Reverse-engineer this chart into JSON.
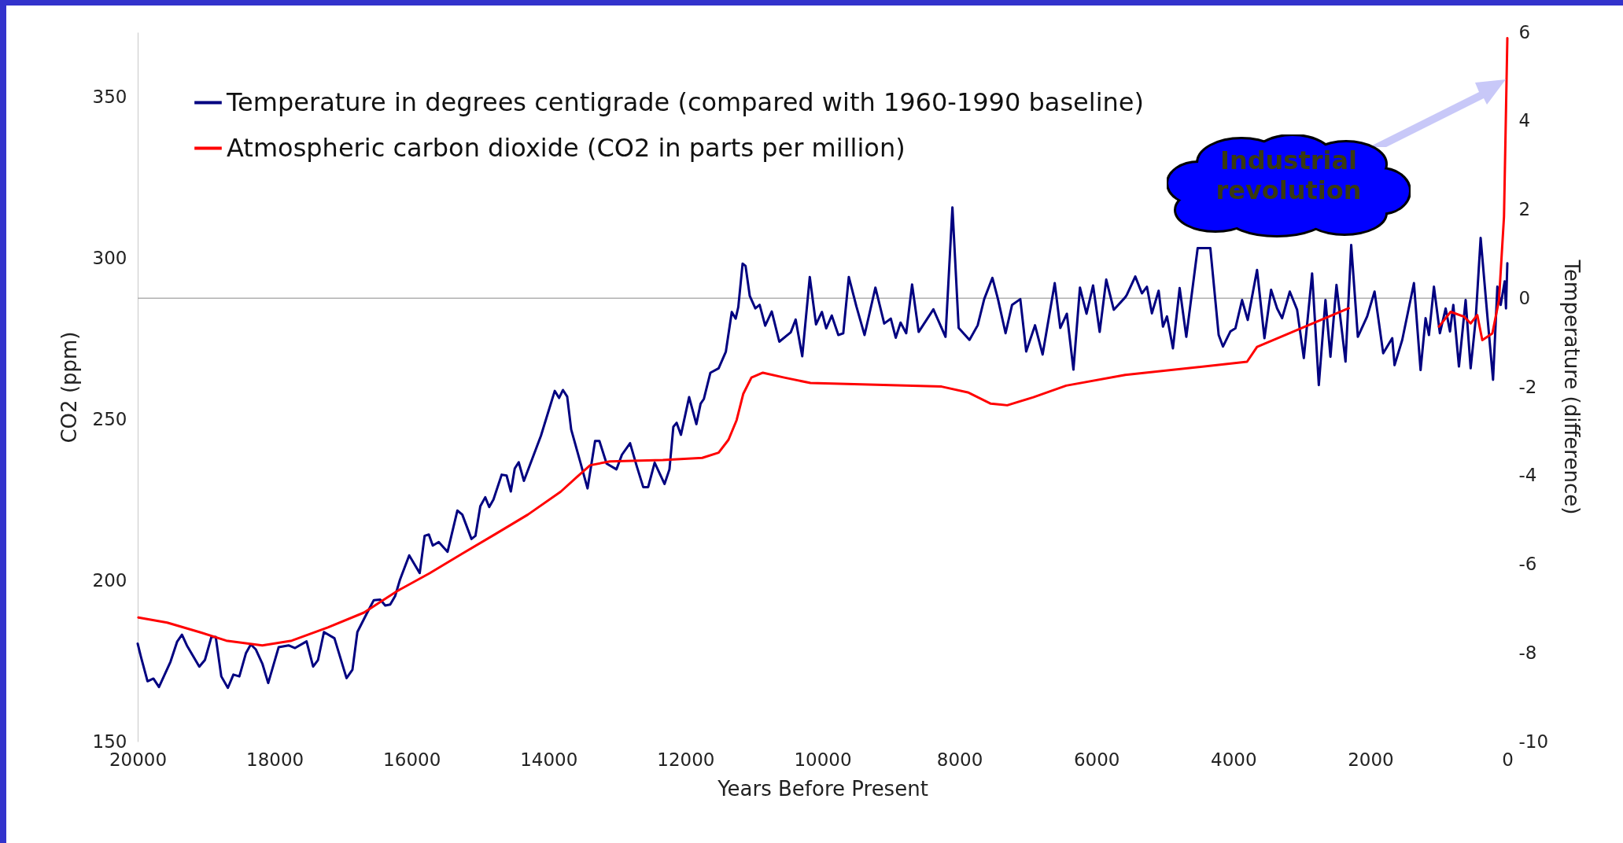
{
  "chart_data": {
    "type": "line",
    "xlabel": "Years Before Present",
    "ylabel": "CO2 (ppm)",
    "y2label": "Temperature (difference)",
    "xlim": [
      20000,
      0
    ],
    "xticks": [
      20000,
      18000,
      16000,
      14000,
      12000,
      10000,
      8000,
      6000,
      4000,
      2000,
      0
    ],
    "ylim": [
      150,
      370
    ],
    "yticks": [
      150,
      200,
      250,
      300,
      350
    ],
    "y2lim": [
      -10,
      6
    ],
    "y2ticks": [
      -10,
      -8,
      -6,
      -4,
      -2,
      0,
      2,
      4,
      6
    ],
    "grid": false,
    "legend": "top left",
    "ref_lines": [
      {
        "axis": "y2",
        "value": 0,
        "color": "#b0b0b0"
      }
    ],
    "annotations": [
      "Industrial revolution"
    ],
    "series": [
      {
        "name": "Temperature in degrees centigrade (compared with 1960-1990 baseline)",
        "color": "#000080",
        "axis": "y2",
        "x": [
          20000,
          19952,
          19856,
          19770,
          19689,
          19521,
          19425,
          19353,
          19282,
          19100,
          19018,
          18923,
          18860,
          18779,
          18683,
          18602,
          18515,
          18420,
          18348,
          18276,
          18180,
          18094,
          17941,
          17797,
          17702,
          17534,
          17438,
          17367,
          17280,
          17127,
          16950,
          16864,
          16792,
          16648,
          16552,
          16457,
          16385,
          16313,
          16241,
          16170,
          16035,
          15882,
          15810,
          15748,
          15691,
          15604,
          15475,
          15332,
          15260,
          15126,
          15068,
          14997,
          14925,
          14867,
          14805,
          14685,
          14613,
          14551,
          14494,
          14436,
          14360,
          14111,
          13910,
          13847,
          13790,
          13728,
          13670,
          13536,
          13431,
          13321,
          13258,
          13153,
          13009,
          12929,
          12810,
          12714,
          12618,
          12546,
          12451,
          12307,
          12235,
          12178,
          12130,
          12067,
          11948,
          11842,
          11780,
          11732,
          11637,
          11517,
          11412,
          11325,
          11268,
          11230,
          11167,
          11124,
          11062,
          10981,
          10918,
          10837,
          10741,
          10631,
          10464,
          10392,
          10296,
          10186,
          10095,
          10009,
          9946,
          9865,
          9769,
          9697,
          9616,
          9506,
          9386,
          9228,
          9099,
          9003,
          8931,
          8860,
          8778,
          8692,
          8596,
          8381,
          8204,
          8103,
          8012,
          7854,
          7734,
          7639,
          7519,
          7438,
          7327,
          7232,
          7112,
          7026,
          6897,
          6786,
          6609,
          6528,
          6432,
          6336,
          6241,
          6145,
          6049,
          5953,
          5857,
          5747,
          5580,
          5555,
          5433,
          5336,
          5263,
          5190,
          5092,
          5029,
          4970,
          4883,
          4785,
          4688,
          4522,
          4337,
          4215,
          4152,
          4045,
          3971,
          3874,
          3791,
          3655,
          3547,
          3450,
          3362,
          3289,
          3177,
          3070,
          2972,
          2851,
          2753,
          2656,
          2583,
          2495,
          2363,
          2280,
          2183,
          2047,
          1939,
          1813,
          1681,
          1647,
          1535,
          1364,
          1267,
          1194,
          1145,
          1072,
          985,
          901,
          838,
          789,
          707,
          609,
          536,
          463,
          390,
          293,
          209,
          146,
          97,
          39,
          20,
          0
        ],
        "values": [
          -7.79,
          -8.09,
          -8.64,
          -8.58,
          -8.77,
          -8.2,
          -7.75,
          -7.59,
          -7.83,
          -8.31,
          -8.16,
          -7.64,
          -7.64,
          -8.53,
          -8.79,
          -8.49,
          -8.53,
          -8.01,
          -7.81,
          -7.92,
          -8.24,
          -8.68,
          -7.87,
          -7.83,
          -7.89,
          -7.74,
          -8.31,
          -8.16,
          -7.53,
          -7.67,
          -8.57,
          -8.38,
          -7.53,
          -7.09,
          -6.81,
          -6.8,
          -6.93,
          -6.91,
          -6.72,
          -6.35,
          -5.8,
          -6.2,
          -5.36,
          -5.33,
          -5.58,
          -5.5,
          -5.72,
          -4.79,
          -4.88,
          -5.43,
          -5.36,
          -4.69,
          -4.49,
          -4.71,
          -4.54,
          -3.98,
          -4,
          -4.36,
          -3.84,
          -3.7,
          -4.12,
          -3.1,
          -2.09,
          -2.25,
          -2.07,
          -2.22,
          -2.96,
          -3.7,
          -4.29,
          -3.22,
          -3.22,
          -3.73,
          -3.86,
          -3.53,
          -3.27,
          -3.78,
          -4.26,
          -4.26,
          -3.71,
          -4.19,
          -3.86,
          -2.9,
          -2.81,
          -3.08,
          -2.23,
          -2.84,
          -2.38,
          -2.27,
          -1.68,
          -1.58,
          -1.21,
          -0.31,
          -0.46,
          -0.2,
          0.78,
          0.73,
          0.05,
          -0.23,
          -0.15,
          -0.62,
          -0.3,
          -0.98,
          -0.77,
          -0.48,
          -1.31,
          0.48,
          -0.59,
          -0.31,
          -0.68,
          -0.39,
          -0.83,
          -0.79,
          0.48,
          -0.18,
          -0.83,
          0.24,
          -0.57,
          -0.46,
          -0.89,
          -0.55,
          -0.79,
          0.31,
          -0.76,
          -0.25,
          -0.87,
          2.05,
          -0.67,
          -0.94,
          -0.61,
          -0.02,
          0.46,
          -0.02,
          -0.79,
          -0.15,
          -0.02,
          -1.2,
          -0.61,
          -1.27,
          0.34,
          -0.67,
          -0.35,
          -1.61,
          0.24,
          -0.35,
          0.29,
          -0.76,
          0.42,
          -0.26,
          0.02,
          0.08,
          0.49,
          0.11,
          0.26,
          -0.34,
          0.17,
          -0.64,
          -0.41,
          -1.13,
          0.23,
          -0.87,
          1.13,
          1.13,
          -0.83,
          -1.09,
          -0.75,
          -0.68,
          -0.04,
          -0.49,
          0.64,
          -0.9,
          0.19,
          -0.23,
          -0.45,
          0.15,
          -0.26,
          -1.35,
          0.56,
          -1.96,
          -0.04,
          -1.32,
          0.3,
          -1.43,
          1.2,
          -0.87,
          -0.41,
          0.15,
          -1.24,
          -0.9,
          -1.51,
          -0.94,
          0.34,
          -1.62,
          -0.45,
          -0.83,
          0.26,
          -0.79,
          -0.23,
          -0.75,
          -0.15,
          -1.54,
          -0.04,
          -1.58,
          -0.49,
          1.36,
          -0.38,
          -1.84,
          0.26,
          -0.15,
          0.38,
          -0.23,
          0.79
        ]
      },
      {
        "name": "Atmospheric carbon dioxide (CO2 in parts per million)",
        "color": "#ff0000",
        "x": [
          19990,
          19569,
          19090,
          18707,
          18180,
          17750,
          17223,
          16696,
          16217,
          15738,
          15260,
          14781,
          14302,
          13823,
          13584,
          13393,
          13105,
          12780,
          12331,
          11756,
          11517,
          11373,
          11254,
          11158,
          11038,
          10871,
          10559,
          10176,
          9219,
          8261,
          7878,
          7543,
          7303,
          6920,
          6442,
          5580,
          3801,
          3655,
          2315,
          1600,
          999,
          828,
          634,
          536,
          439,
          366,
          219,
          122,
          49,
          0
        ],
        "values": [
          188.5,
          186.9,
          183.9,
          181.3,
          179.8,
          181.3,
          185.4,
          190,
          196.6,
          202.2,
          208.3,
          214.3,
          220.4,
          227.5,
          232.1,
          235.7,
          236.9,
          237.1,
          237.3,
          238,
          239.6,
          243.6,
          249.7,
          257.8,
          262.9,
          264.4,
          262.9,
          261.2,
          260.7,
          260.1,
          258.3,
          254.8,
          254.3,
          256.8,
          260.4,
          263.7,
          267.8,
          272.4,
          284.4,
          null,
          278.7,
          283.3,
          281.8,
          279.7,
          282.3,
          274.5,
          276.6,
          286.9,
          312.8,
          368.2
        ]
      }
    ]
  }
}
